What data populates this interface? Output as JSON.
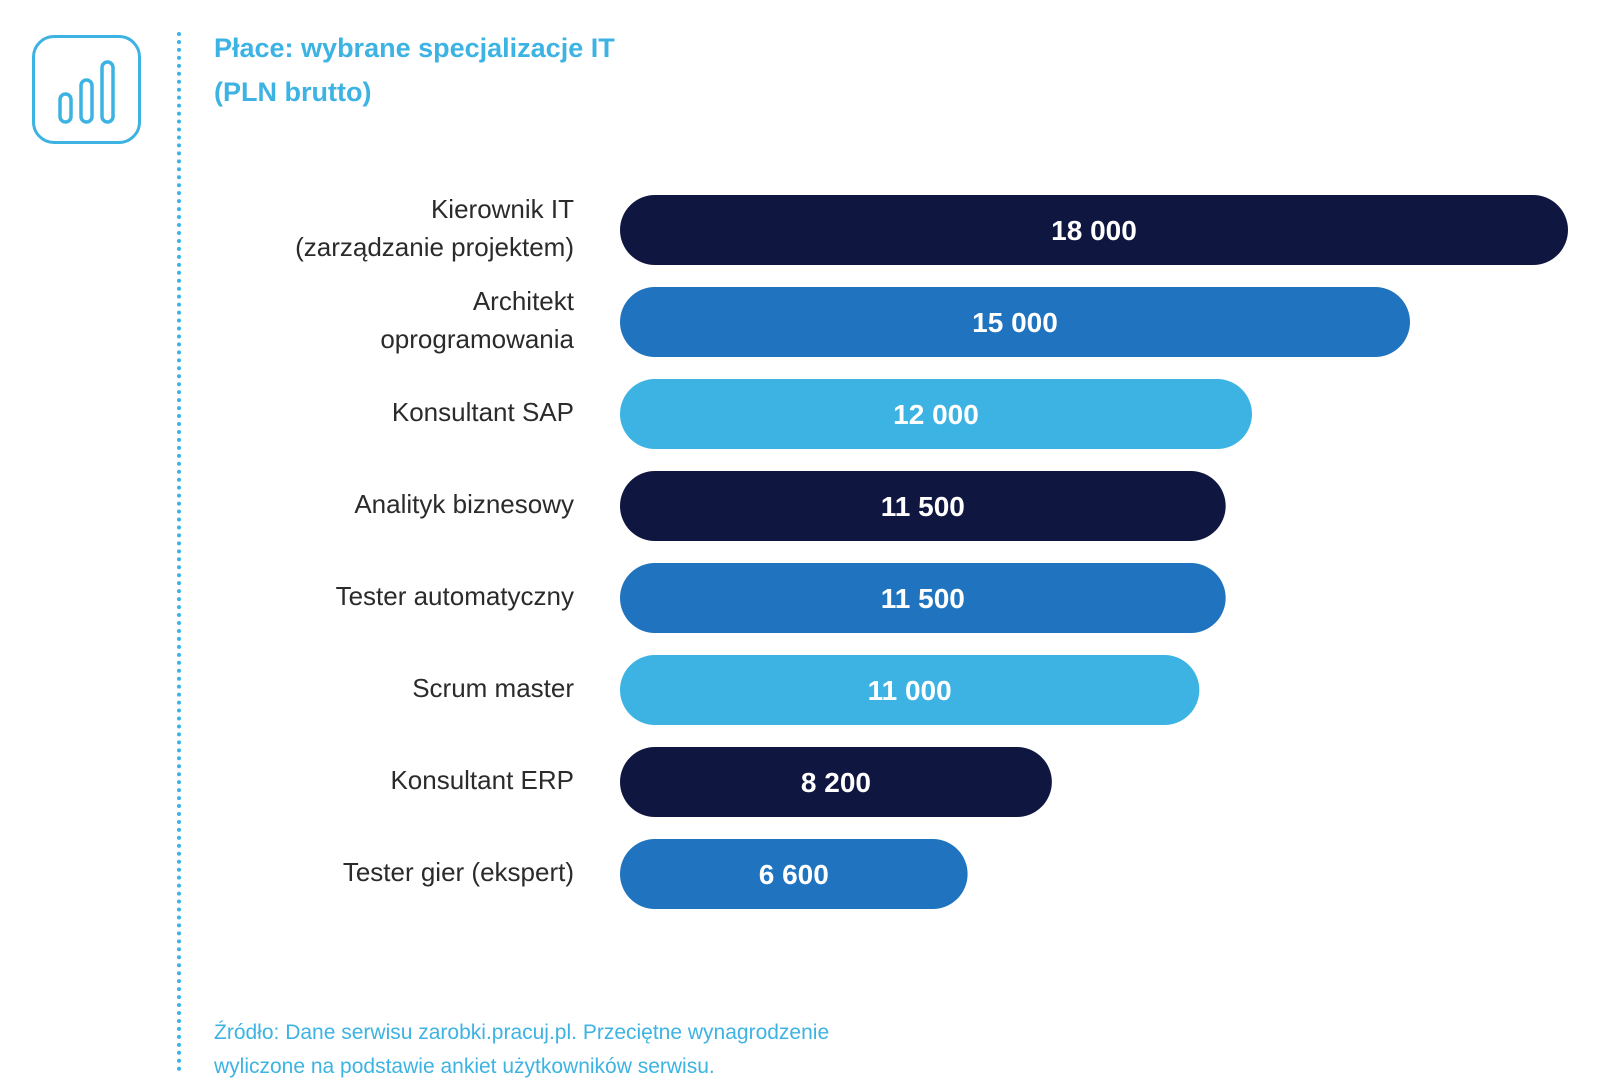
{
  "header": {
    "title_line1": "Płace: wybrane specjalizacje IT",
    "title_line2": "(PLN brutto)",
    "icon": "bar-chart-icon"
  },
  "colors": {
    "accent": "#3db3e3",
    "navy": "#0f1640",
    "blue": "#1f73bf",
    "light_blue": "#3db3e3",
    "label_text": "#2b2b2b"
  },
  "chart_data": {
    "type": "bar",
    "orientation": "horizontal",
    "categories": [
      [
        "Kierownik IT",
        "(zarządzanie projektem)"
      ],
      [
        "Architekt",
        "oprogramowania"
      ],
      [
        "Konsultant SAP"
      ],
      [
        "Analityk biznesowy"
      ],
      [
        "Tester automatyczny"
      ],
      [
        "Scrum master"
      ],
      [
        "Konsultant ERP"
      ],
      [
        "Tester gier (ekspert)"
      ]
    ],
    "values": [
      18000,
      15000,
      12000,
      11500,
      11500,
      11000,
      8200,
      6600
    ],
    "value_labels": [
      "18 000",
      "15 000",
      "12 000",
      "11 500",
      "11 500",
      "11 000",
      "8 200",
      "6 600"
    ],
    "bar_colors": [
      "#0f1640",
      "#1f73bf",
      "#3db3e3",
      "#0f1640",
      "#1f73bf",
      "#3db3e3",
      "#0f1640",
      "#1f73bf"
    ],
    "xlim": [
      0,
      18000
    ],
    "grid": false,
    "legend": "none"
  },
  "source": {
    "line1": "Źródło: Dane serwisu zarobki.pracuj.pl. Przeciętne wynagrodzenie",
    "line2": "wyliczone na podstawie ankiet użytkowników serwisu."
  }
}
